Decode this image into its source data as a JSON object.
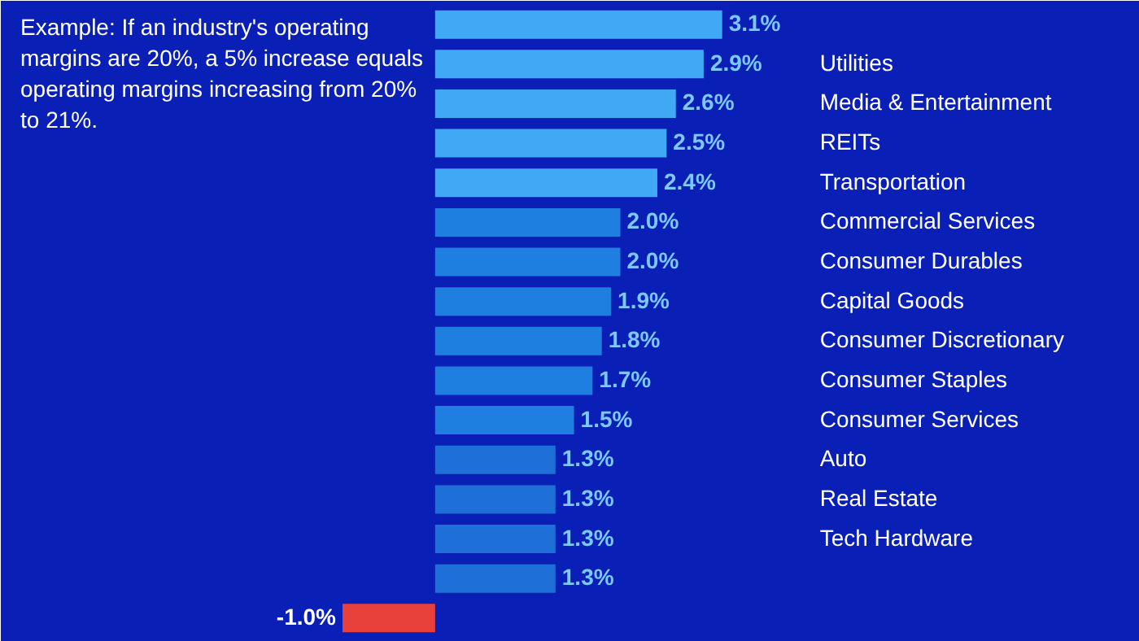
{
  "chart_data": {
    "type": "bar",
    "orientation": "horizontal",
    "categories": [
      null,
      "Utilities",
      "Media & Entertainment",
      "REITs",
      "Transportation",
      "Commercial Services",
      "Consumer Durables",
      "Capital Goods",
      "Consumer Discretionary",
      "Consumer Staples",
      "Consumer Services",
      "Auto",
      "Real Estate",
      "Tech Hardware",
      null,
      null
    ],
    "values": [
      3.1,
      2.9,
      2.6,
      2.5,
      2.4,
      2.0,
      2.0,
      1.9,
      1.8,
      1.7,
      1.5,
      1.3,
      1.3,
      1.3,
      1.3,
      -1.0
    ],
    "colors": [
      "#3fa9f5",
      "#3fa9f5",
      "#3fa9f5",
      "#3fa9f5",
      "#3fa9f5",
      "#1f7fe0",
      "#1f7fe0",
      "#1f7fe0",
      "#1f7fe0",
      "#1f7fe0",
      "#1f7fe0",
      "#1f6fd8",
      "#1f6fd8",
      "#1f6fd8",
      "#1f6fd8",
      "#e8403a"
    ],
    "value_labels": [
      "3.1%",
      "2.9%",
      "2.6%",
      "2.5%",
      "2.4%",
      "2.0%",
      "2.0%",
      "1.9%",
      "1.8%",
      "1.7%",
      "1.5%",
      "1.3%",
      "1.3%",
      "1.3%",
      "1.3%",
      "-1.0%"
    ],
    "annotations": [
      "Example: If an industry's operating margins are 20%, a 5% increase equals operating margins increasing from 20% to 21%."
    ]
  }
}
